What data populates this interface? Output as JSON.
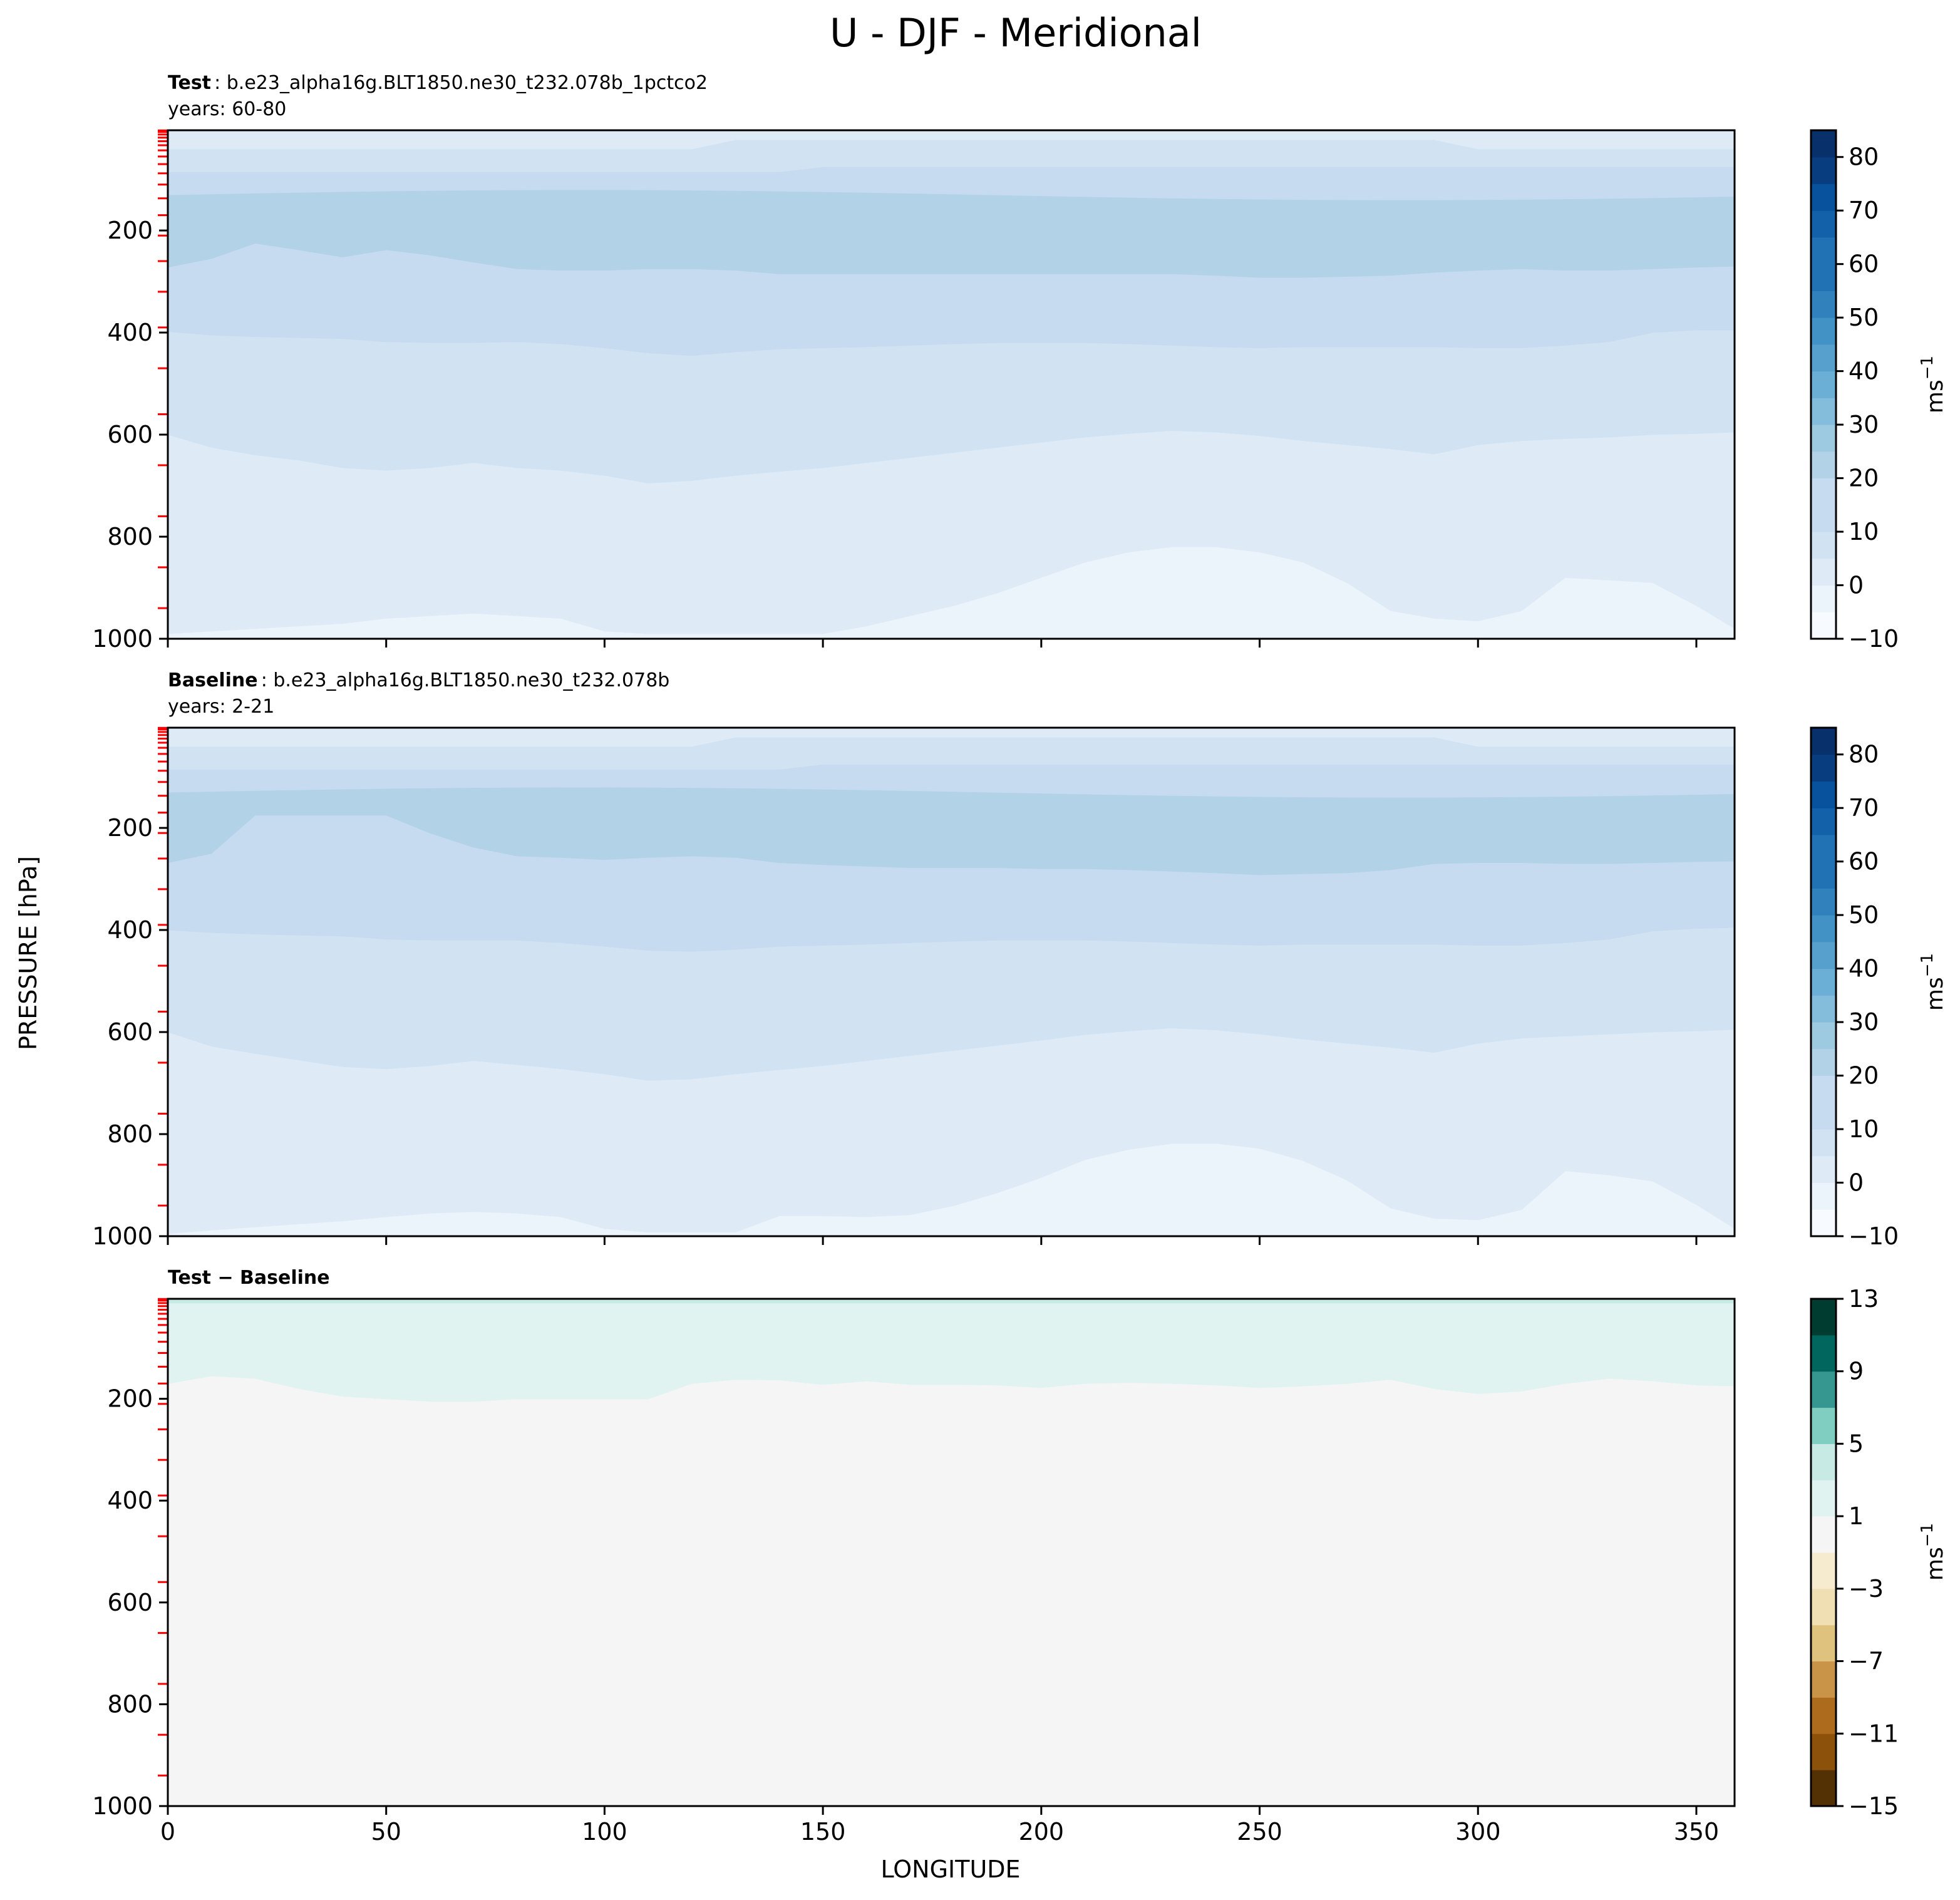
{
  "title": "U - DJF - Meridional",
  "xlabel": "LONGITUDE",
  "ylabel": "PRESSURE [hPa]",
  "x_ticks": [
    "0",
    "50",
    "100",
    "150",
    "200",
    "250",
    "300",
    "350"
  ],
  "y_ticks": [
    "200",
    "400",
    "600",
    "800",
    "1000"
  ],
  "colors": {
    "blues": [
      "#f7fbff",
      "#ebf3fb",
      "#deebf7",
      "#d1e3f3",
      "#c6dbef",
      "#b2d2e8",
      "#9ecae1",
      "#84bcdb",
      "#6baed6",
      "#57a0ce",
      "#4292c6",
      "#3181bd",
      "#2171b5",
      "#1361a9",
      "#08519c",
      "#083e80",
      "#08306b"
    ],
    "diverging": [
      "#543005",
      "#8c510a",
      "#ad6b1e",
      "#c99448",
      "#dfc27d",
      "#f0dfb2",
      "#f6ebcf",
      "#f4f5f4",
      "#e0f3f0",
      "#c7eae5",
      "#80cdc1",
      "#35978f",
      "#01665e",
      "#003c30"
    ],
    "level_ticks": "#ff0000"
  },
  "panels": [
    {
      "title_bold": "Test",
      "title_rest": ": b.e23_alpha16g.BLT1850.ne30_t232.078b_1pctco2",
      "years": "years: 60-80",
      "colorbar_ticks": [
        "−10",
        "0",
        "10",
        "20",
        "30",
        "40",
        "50",
        "60",
        "70",
        "80"
      ],
      "colorbar_label": "ms",
      "colorbar_label_sup": "−1"
    },
    {
      "title_bold": "Baseline",
      "title_rest": ": b.e23_alpha16g.BLT1850.ne30_t232.078b",
      "years": "years: 2-21",
      "colorbar_ticks": [
        "−10",
        "0",
        "10",
        "20",
        "30",
        "40",
        "50",
        "60",
        "70",
        "80"
      ],
      "colorbar_label": "ms",
      "colorbar_label_sup": "−1"
    },
    {
      "title_bold": "Test − Baseline",
      "title_rest": "",
      "years": "",
      "colorbar_ticks": [
        "−15",
        "−11",
        "−7",
        "−3",
        "1",
        "5",
        "9",
        "13"
      ],
      "colorbar_label": "ms",
      "colorbar_label_sup": "−1"
    }
  ],
  "chart_data": [
    {
      "type": "contour",
      "name": "Test",
      "xlim": [
        0,
        358.75
      ],
      "ylim": [
        1000,
        3.6
      ],
      "yscale": "linear",
      "levels": [
        -10,
        -5,
        0,
        5,
        10,
        15,
        20,
        25,
        30,
        35,
        40,
        45,
        50,
        55,
        60,
        65,
        70,
        75,
        80,
        85
      ],
      "colormap": "Blues",
      "contours_lower_boundary_hPa": {
        "x": [
          0,
          10,
          20,
          30,
          40,
          50,
          60,
          70,
          80,
          90,
          100,
          110,
          120,
          130,
          140,
          150,
          160,
          170,
          180,
          190,
          200,
          210,
          220,
          230,
          240,
          250,
          260,
          270,
          280,
          290,
          300,
          310,
          320,
          330,
          340,
          350,
          358.75
        ],
        "lev_20": [
          272,
          255,
          225,
          238,
          252,
          238,
          248,
          262,
          275,
          278,
          278,
          275,
          275,
          278,
          285,
          285,
          285,
          285,
          285,
          285,
          285,
          285,
          285,
          285,
          288,
          292,
          292,
          290,
          288,
          282,
          278,
          275,
          278,
          278,
          275,
          272,
          270
        ],
        "lev_15": [
          398,
          405,
          408,
          410,
          412,
          418,
          420,
          420,
          418,
          422,
          430,
          440,
          445,
          438,
          432,
          430,
          428,
          425,
          422,
          420,
          420,
          420,
          422,
          425,
          428,
          430,
          428,
          428,
          428,
          428,
          430,
          430,
          425,
          418,
          400,
          395,
          395
        ],
        "lev_10": [
          600,
          625,
          640,
          650,
          665,
          670,
          665,
          655,
          665,
          670,
          680,
          695,
          690,
          680,
          672,
          665,
          655,
          645,
          635,
          625,
          615,
          605,
          598,
          592,
          595,
          602,
          612,
          620,
          628,
          638,
          620,
          612,
          608,
          605,
          600,
          598,
          595
        ],
        "lev_5": [
          990,
          985,
          980,
          975,
          970,
          960,
          955,
          950,
          955,
          960,
          985,
          990,
          990,
          990,
          990,
          990,
          975,
          955,
          935,
          910,
          880,
          850,
          830,
          820,
          820,
          830,
          850,
          890,
          945,
          960,
          965,
          945,
          880,
          885,
          890,
          935,
          980
        ]
      }
    },
    {
      "type": "contour",
      "name": "Baseline",
      "xlim": [
        0,
        358.75
      ],
      "ylim": [
        1000,
        3.6
      ],
      "yscale": "linear",
      "levels": [
        -10,
        -5,
        0,
        5,
        10,
        15,
        20,
        25,
        30,
        35,
        40,
        45,
        50,
        55,
        60,
        65,
        70,
        75,
        80,
        85
      ],
      "colormap": "Blues",
      "contours_lower_boundary_hPa": {
        "x": [
          0,
          10,
          20,
          30,
          40,
          50,
          60,
          70,
          80,
          90,
          100,
          110,
          120,
          130,
          140,
          150,
          160,
          170,
          180,
          190,
          200,
          210,
          220,
          230,
          240,
          250,
          260,
          270,
          280,
          290,
          300,
          310,
          320,
          330,
          340,
          350,
          358.75
        ],
        "lev_20": [
          268,
          250,
          175,
          175,
          175,
          175,
          210,
          238,
          255,
          258,
          262,
          258,
          255,
          258,
          268,
          272,
          275,
          278,
          278,
          278,
          280,
          280,
          282,
          285,
          288,
          292,
          290,
          288,
          282,
          270,
          268,
          268,
          270,
          270,
          268,
          266,
          265
        ],
        "lev_15": [
          400,
          405,
          408,
          410,
          412,
          418,
          420,
          420,
          420,
          425,
          432,
          440,
          442,
          438,
          432,
          430,
          428,
          425,
          422,
          420,
          420,
          420,
          422,
          425,
          428,
          430,
          428,
          428,
          428,
          428,
          430,
          430,
          425,
          418,
          402,
          397,
          395
        ],
        "lev_10": [
          600,
          628,
          642,
          655,
          668,
          672,
          666,
          656,
          664,
          672,
          682,
          695,
          692,
          682,
          674,
          666,
          656,
          646,
          636,
          626,
          616,
          605,
          598,
          592,
          596,
          604,
          614,
          622,
          630,
          640,
          622,
          612,
          608,
          604,
          600,
          598,
          595
        ],
        "lev_5": [
          995,
          988,
          982,
          976,
          970,
          962,
          955,
          952,
          955,
          962,
          985,
          992,
          992,
          992,
          960,
          960,
          962,
          958,
          940,
          915,
          885,
          850,
          830,
          818,
          818,
          828,
          852,
          890,
          945,
          965,
          968,
          948,
          872,
          880,
          892,
          938,
          985
        ]
      }
    },
    {
      "type": "contour",
      "name": "Test − Baseline",
      "xlim": [
        0,
        358.75
      ],
      "ylim": [
        1000,
        3.6
      ],
      "yscale": "linear",
      "levels": [
        -15,
        -13,
        -11,
        -9,
        -7,
        -5,
        -3,
        -1,
        1,
        3,
        5,
        7,
        9,
        11,
        13
      ],
      "colormap": "BrBG",
      "contours_lower_boundary_hPa": {
        "x": [
          0,
          10,
          20,
          30,
          40,
          50,
          60,
          70,
          80,
          90,
          100,
          110,
          120,
          130,
          140,
          150,
          160,
          170,
          180,
          190,
          200,
          210,
          220,
          230,
          240,
          250,
          260,
          270,
          280,
          290,
          300,
          310,
          320,
          330,
          340,
          350,
          358.75
        ],
        "lev_1": [
          170,
          155,
          160,
          180,
          195,
          200,
          205,
          205,
          200,
          200,
          200,
          200,
          170,
          162,
          163,
          172,
          165,
          172,
          172,
          173,
          178,
          170,
          168,
          170,
          173,
          178,
          175,
          170,
          162,
          180,
          190,
          185,
          170,
          160,
          165,
          173,
          175
        ]
      }
    }
  ]
}
